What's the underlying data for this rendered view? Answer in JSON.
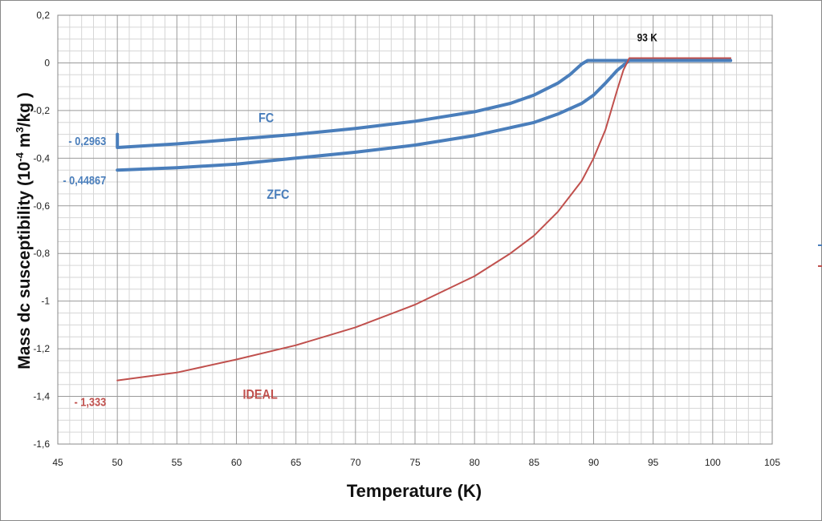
{
  "chart_data": {
    "type": "line",
    "title": "",
    "xlabel": "Temperature (K)",
    "ylabel_main": "Mass dc susceptibility (10",
    "ylabel_exp": "-4",
    "ylabel_mid": " m",
    "ylabel_exp2": "3",
    "ylabel_tail": "/kg )",
    "xlim": [
      45,
      105
    ],
    "ylim": [
      -1.6,
      0.2
    ],
    "x_ticks": [
      "45",
      "50",
      "55",
      "60",
      "65",
      "70",
      "75",
      "80",
      "85",
      "90",
      "95",
      "100",
      "105"
    ],
    "y_ticks": [
      "0,2",
      "0",
      "-0,2",
      "-0,4",
      "-0,6",
      "-0,8",
      "-1",
      "-1,2",
      "-1,4",
      "-1,6"
    ],
    "grid": true,
    "series": [
      {
        "name": "FC",
        "color": "#4a7ebb",
        "points": [
          [
            50,
            -0.3
          ],
          [
            50,
            -0.355
          ],
          [
            55,
            -0.34
          ],
          [
            60,
            -0.32
          ],
          [
            65,
            -0.3
          ],
          [
            70,
            -0.275
          ],
          [
            75,
            -0.245
          ],
          [
            80,
            -0.205
          ],
          [
            83,
            -0.17
          ],
          [
            85,
            -0.135
          ],
          [
            87,
            -0.085
          ],
          [
            88,
            -0.05
          ],
          [
            89,
            -0.005
          ],
          [
            89.5,
            0.01
          ],
          [
            95,
            0.01
          ],
          [
            101.5,
            0.01
          ]
        ]
      },
      {
        "name": "ZFC",
        "color": "#4a7ebb",
        "points": [
          [
            50,
            -0.45
          ],
          [
            55,
            -0.44
          ],
          [
            60,
            -0.425
          ],
          [
            65,
            -0.4
          ],
          [
            70,
            -0.375
          ],
          [
            75,
            -0.345
          ],
          [
            80,
            -0.305
          ],
          [
            85,
            -0.25
          ],
          [
            87,
            -0.215
          ],
          [
            89,
            -0.17
          ],
          [
            90,
            -0.135
          ],
          [
            91,
            -0.085
          ],
          [
            92,
            -0.03
          ],
          [
            93,
            0.01
          ],
          [
            95,
            0.01
          ],
          [
            101.5,
            0.01
          ]
        ]
      },
      {
        "name": "IDEAL",
        "color": "#c0504d",
        "points": [
          [
            50,
            -1.333
          ],
          [
            55,
            -1.3
          ],
          [
            60,
            -1.245
          ],
          [
            65,
            -1.185
          ],
          [
            70,
            -1.11
          ],
          [
            75,
            -1.015
          ],
          [
            80,
            -0.895
          ],
          [
            83,
            -0.8
          ],
          [
            85,
            -0.725
          ],
          [
            87,
            -0.625
          ],
          [
            89,
            -0.495
          ],
          [
            90,
            -0.4
          ],
          [
            91,
            -0.28
          ],
          [
            92,
            -0.11
          ],
          [
            92.5,
            -0.03
          ],
          [
            93,
            0.02
          ],
          [
            95,
            0.02
          ],
          [
            101.5,
            0.02
          ]
        ]
      }
    ],
    "annotations": [
      {
        "text": "- 0,2963",
        "x": 50,
        "y": -0.345,
        "color": "#4a7ebb",
        "anchor": "end"
      },
      {
        "text": "- 0,44867",
        "x": 50,
        "y": -0.51,
        "color": "#4a7ebb",
        "anchor": "end"
      },
      {
        "text": "- 1,333",
        "x": 50,
        "y": -1.44,
        "color": "#c0504d",
        "anchor": "end"
      },
      {
        "text": "FC",
        "x": 62.5,
        "y": -0.25,
        "color": "#4a7ebb",
        "anchor": "middle"
      },
      {
        "text": "ZFC",
        "x": 63.5,
        "y": -0.57,
        "color": "#4a7ebb",
        "anchor": "middle"
      },
      {
        "text": "IDEAL",
        "x": 62,
        "y": -1.41,
        "color": "#c0504d",
        "anchor": "middle"
      },
      {
        "text": "93 K",
        "x": 94.5,
        "y": 0.09,
        "color": "#111111",
        "anchor": "middle"
      }
    ]
  }
}
